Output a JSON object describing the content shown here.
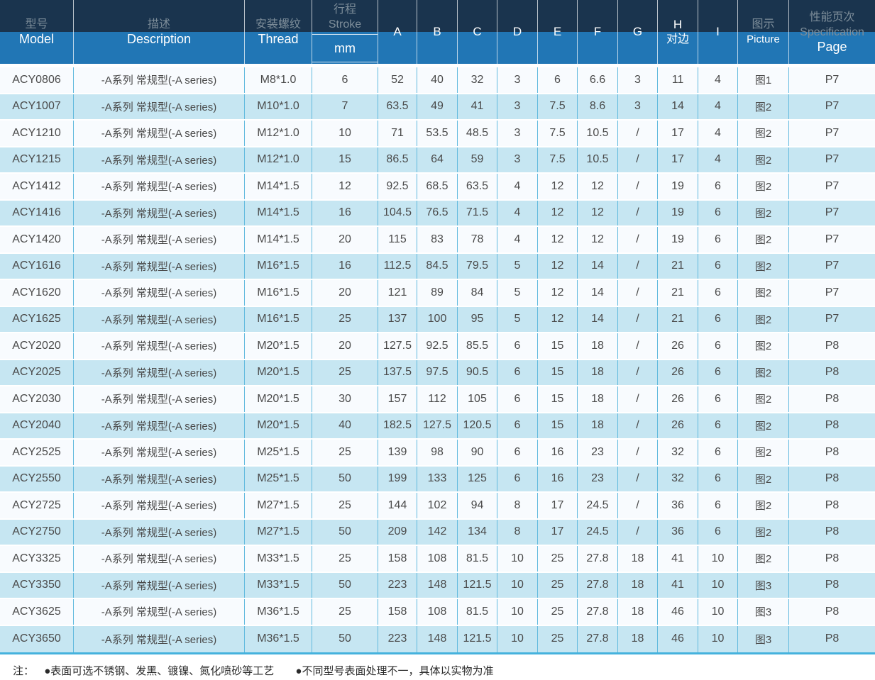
{
  "colors": {
    "header_dark_navy": "#1a344e",
    "header_blue": "#2176b5",
    "header_gray_text": "#7e8e9a",
    "row_stripe_blue": "#c6e6f2",
    "row_stripe_white": "#f8fbfe",
    "cell_border_blue": "#62bade",
    "table_bottom_border": "#45b2dd"
  },
  "table": {
    "header": {
      "model_zh": "型号",
      "model_en": "Model",
      "description_zh": "描述",
      "description_en": "Description",
      "thread_zh": "安装螺纹",
      "thread_en": "Thread",
      "stroke_zh": "行程",
      "stroke_en": "Stroke",
      "stroke_unit": "mm",
      "col_a": "A",
      "col_b": "B",
      "col_c": "C",
      "col_d": "D",
      "col_e": "E",
      "col_f": "F",
      "col_g": "G",
      "col_h": "H",
      "col_h_sub": "对边",
      "col_i": "I",
      "picture_zh": "图示",
      "picture_en": "Picture",
      "spec_zh": "性能页次",
      "spec_en": "Specification",
      "spec_page": "Page"
    },
    "rows": [
      {
        "model": "ACY0806",
        "description": "-A系列 常规型(-A series)",
        "thread": "M8*1.0",
        "stroke": "6",
        "a": "52",
        "b": "40",
        "c": "32",
        "d": "3",
        "e": "6",
        "f": "6.6",
        "g": "3",
        "h": "11",
        "i": "4",
        "picture": "图1",
        "page": "P7"
      },
      {
        "model": "ACY1007",
        "description": "-A系列 常规型(-A series)",
        "thread": "M10*1.0",
        "stroke": "7",
        "a": "63.5",
        "b": "49",
        "c": "41",
        "d": "3",
        "e": "7.5",
        "f": "8.6",
        "g": "3",
        "h": "14",
        "i": "4",
        "picture": "图2",
        "page": "P7"
      },
      {
        "model": "ACY1210",
        "description": "-A系列 常规型(-A series)",
        "thread": "M12*1.0",
        "stroke": "10",
        "a": "71",
        "b": "53.5",
        "c": "48.5",
        "d": "3",
        "e": "7.5",
        "f": "10.5",
        "g": "/",
        "h": "17",
        "i": "4",
        "picture": "图2",
        "page": "P7"
      },
      {
        "model": "ACY1215",
        "description": "-A系列 常规型(-A series)",
        "thread": "M12*1.0",
        "stroke": "15",
        "a": "86.5",
        "b": "64",
        "c": "59",
        "d": "3",
        "e": "7.5",
        "f": "10.5",
        "g": "/",
        "h": "17",
        "i": "4",
        "picture": "图2",
        "page": "P7"
      },
      {
        "model": "ACY1412",
        "description": "-A系列 常规型(-A series)",
        "thread": "M14*1.5",
        "stroke": "12",
        "a": "92.5",
        "b": "68.5",
        "c": "63.5",
        "d": "4",
        "e": "12",
        "f": "12",
        "g": "/",
        "h": "19",
        "i": "6",
        "picture": "图2",
        "page": "P7"
      },
      {
        "model": "ACY1416",
        "description": "-A系列 常规型(-A series)",
        "thread": "M14*1.5",
        "stroke": "16",
        "a": "104.5",
        "b": "76.5",
        "c": "71.5",
        "d": "4",
        "e": "12",
        "f": "12",
        "g": "/",
        "h": "19",
        "i": "6",
        "picture": "图2",
        "page": "P7"
      },
      {
        "model": "ACY1420",
        "description": "-A系列 常规型(-A series)",
        "thread": "M14*1.5",
        "stroke": "20",
        "a": "115",
        "b": "83",
        "c": "78",
        "d": "4",
        "e": "12",
        "f": "12",
        "g": "/",
        "h": "19",
        "i": "6",
        "picture": "图2",
        "page": "P7"
      },
      {
        "model": "ACY1616",
        "description": "-A系列 常规型(-A series)",
        "thread": "M16*1.5",
        "stroke": "16",
        "a": "112.5",
        "b": "84.5",
        "c": "79.5",
        "d": "5",
        "e": "12",
        "f": "14",
        "g": "/",
        "h": "21",
        "i": "6",
        "picture": "图2",
        "page": "P7"
      },
      {
        "model": "ACY1620",
        "description": "-A系列 常规型(-A series)",
        "thread": "M16*1.5",
        "stroke": "20",
        "a": "121",
        "b": "89",
        "c": "84",
        "d": "5",
        "e": "12",
        "f": "14",
        "g": "/",
        "h": "21",
        "i": "6",
        "picture": "图2",
        "page": "P7"
      },
      {
        "model": "ACY1625",
        "description": "-A系列 常规型(-A series)",
        "thread": "M16*1.5",
        "stroke": "25",
        "a": "137",
        "b": "100",
        "c": "95",
        "d": "5",
        "e": "12",
        "f": "14",
        "g": "/",
        "h": "21",
        "i": "6",
        "picture": "图2",
        "page": "P7"
      },
      {
        "model": "ACY2020",
        "description": "-A系列 常规型(-A series)",
        "thread": "M20*1.5",
        "stroke": "20",
        "a": "127.5",
        "b": "92.5",
        "c": "85.5",
        "d": "6",
        "e": "15",
        "f": "18",
        "g": "/",
        "h": "26",
        "i": "6",
        "picture": "图2",
        "page": "P8"
      },
      {
        "model": "ACY2025",
        "description": "-A系列 常规型(-A series)",
        "thread": "M20*1.5",
        "stroke": "25",
        "a": "137.5",
        "b": "97.5",
        "c": "90.5",
        "d": "6",
        "e": "15",
        "f": "18",
        "g": "/",
        "h": "26",
        "i": "6",
        "picture": "图2",
        "page": "P8"
      },
      {
        "model": "ACY2030",
        "description": "-A系列 常规型(-A series)",
        "thread": "M20*1.5",
        "stroke": "30",
        "a": "157",
        "b": "112",
        "c": "105",
        "d": "6",
        "e": "15",
        "f": "18",
        "g": "/",
        "h": "26",
        "i": "6",
        "picture": "图2",
        "page": "P8"
      },
      {
        "model": "ACY2040",
        "description": "-A系列 常规型(-A series)",
        "thread": "M20*1.5",
        "stroke": "40",
        "a": "182.5",
        "b": "127.5",
        "c": "120.5",
        "d": "6",
        "e": "15",
        "f": "18",
        "g": "/",
        "h": "26",
        "i": "6",
        "picture": "图2",
        "page": "P8"
      },
      {
        "model": "ACY2525",
        "description": "-A系列 常规型(-A series)",
        "thread": "M25*1.5",
        "stroke": "25",
        "a": "139",
        "b": "98",
        "c": "90",
        "d": "6",
        "e": "16",
        "f": "23",
        "g": "/",
        "h": "32",
        "i": "6",
        "picture": "图2",
        "page": "P8"
      },
      {
        "model": "ACY2550",
        "description": "-A系列 常规型(-A series)",
        "thread": "M25*1.5",
        "stroke": "50",
        "a": "199",
        "b": "133",
        "c": "125",
        "d": "6",
        "e": "16",
        "f": "23",
        "g": "/",
        "h": "32",
        "i": "6",
        "picture": "图2",
        "page": "P8"
      },
      {
        "model": "ACY2725",
        "description": "-A系列 常规型(-A series)",
        "thread": "M27*1.5",
        "stroke": "25",
        "a": "144",
        "b": "102",
        "c": "94",
        "d": "8",
        "e": "17",
        "f": "24.5",
        "g": "/",
        "h": "36",
        "i": "6",
        "picture": "图2",
        "page": "P8"
      },
      {
        "model": "ACY2750",
        "description": "-A系列 常规型(-A series)",
        "thread": "M27*1.5",
        "stroke": "50",
        "a": "209",
        "b": "142",
        "c": "134",
        "d": "8",
        "e": "17",
        "f": "24.5",
        "g": "/",
        "h": "36",
        "i": "6",
        "picture": "图2",
        "page": "P8"
      },
      {
        "model": "ACY3325",
        "description": "-A系列 常规型(-A series)",
        "thread": "M33*1.5",
        "stroke": "25",
        "a": "158",
        "b": "108",
        "c": "81.5",
        "d": "10",
        "e": "25",
        "f": "27.8",
        "g": "18",
        "h": "41",
        "i": "10",
        "picture": "图2",
        "page": "P8"
      },
      {
        "model": "ACY3350",
        "description": "-A系列 常规型(-A series)",
        "thread": "M33*1.5",
        "stroke": "50",
        "a": "223",
        "b": "148",
        "c": "121.5",
        "d": "10",
        "e": "25",
        "f": "27.8",
        "g": "18",
        "h": "41",
        "i": "10",
        "picture": "图3",
        "page": "P8"
      },
      {
        "model": "ACY3625",
        "description": "-A系列 常规型(-A series)",
        "thread": "M36*1.5",
        "stroke": "25",
        "a": "158",
        "b": "108",
        "c": "81.5",
        "d": "10",
        "e": "25",
        "f": "27.8",
        "g": "18",
        "h": "46",
        "i": "10",
        "picture": "图3",
        "page": "P8"
      },
      {
        "model": "ACY3650",
        "description": "-A系列 常规型(-A series)",
        "thread": "M36*1.5",
        "stroke": "50",
        "a": "223",
        "b": "148",
        "c": "121.5",
        "d": "10",
        "e": "25",
        "f": "27.8",
        "g": "18",
        "h": "46",
        "i": "10",
        "picture": "图3",
        "page": "P8"
      }
    ]
  },
  "note": {
    "prefix": "注：",
    "item1": "●表面可选不锈钢、发黑、镀镍、氮化喷砂等工艺",
    "item2": "●不同型号表面处理不一，具体以实物为准"
  }
}
